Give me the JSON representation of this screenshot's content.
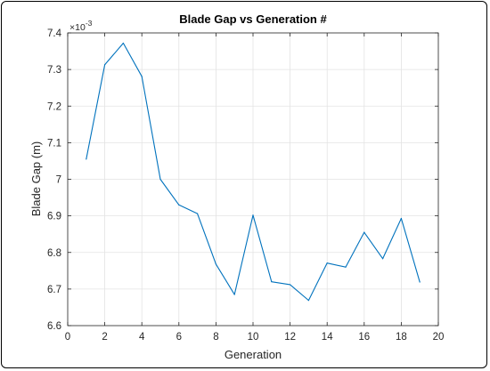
{
  "chart_data": {
    "type": "line",
    "title": "Blade Gap vs Generation #",
    "xlabel": "Generation",
    "ylabel": "Blade Gap (m)",
    "y_multiplier_label": "×10",
    "y_multiplier_exponent": "-3",
    "xlim": [
      0,
      20
    ],
    "ylim": [
      6.6,
      7.4
    ],
    "xticks": [
      "0",
      "2",
      "4",
      "6",
      "8",
      "10",
      "12",
      "14",
      "16",
      "18",
      "20"
    ],
    "yticks": [
      "6.6",
      "6.7",
      "6.8",
      "6.9",
      "7",
      "7.1",
      "7.2",
      "7.3",
      "7.4"
    ],
    "grid": true,
    "line_color": "#0072BD",
    "series": [
      {
        "x": [
          1,
          2,
          3,
          4,
          5,
          6,
          7,
          8,
          9,
          10,
          11,
          12,
          13,
          14,
          15,
          16,
          17,
          18,
          19
        ],
        "values": [
          7.055,
          7.313,
          7.372,
          7.281,
          7.0,
          6.93,
          6.906,
          6.768,
          6.685,
          6.902,
          6.72,
          6.712,
          6.669,
          6.771,
          6.76,
          6.855,
          6.783,
          6.893,
          6.719
        ]
      }
    ]
  }
}
